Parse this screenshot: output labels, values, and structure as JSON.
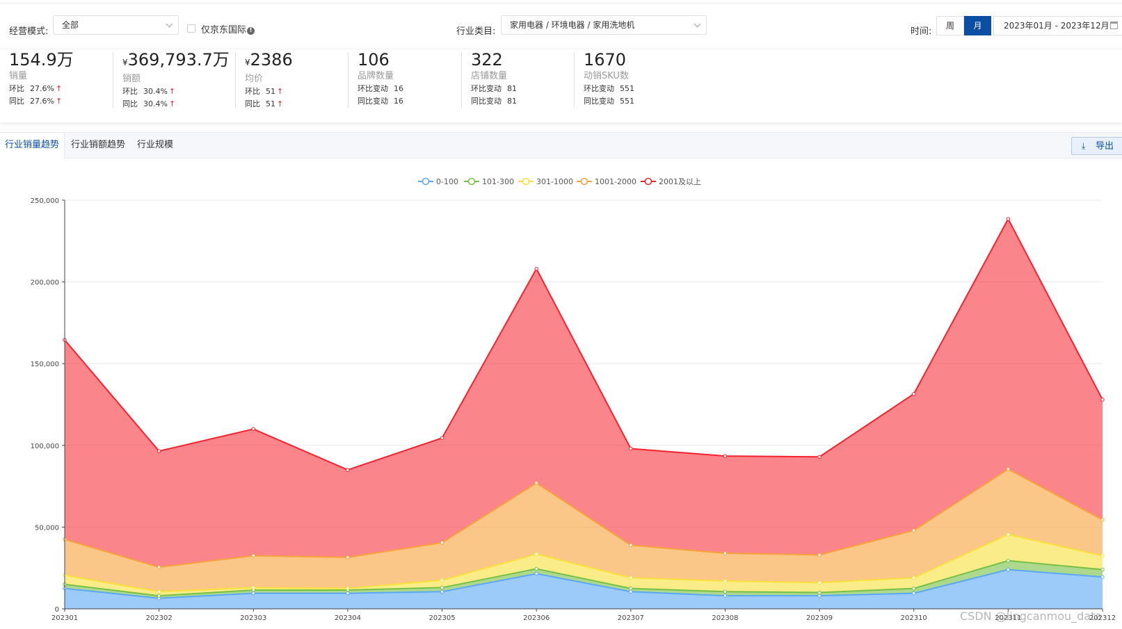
{
  "filters": {
    "mode_label": "经营模式:",
    "mode_value": "全部",
    "jd_intl_label": "仅京东国际",
    "industry_label": "行业类目:",
    "industry_value": "家用电器 / 环境电器 / 家用洗地机",
    "time_label": "时间:",
    "week_label": "周",
    "month_label": "月",
    "date_range": "2023年01月 - 2023年12月"
  },
  "metrics": [
    {
      "value": "154.9万",
      "name": "销量",
      "mom_label": "环比",
      "mom": "27.6%",
      "yoy_label": "同比",
      "yoy": "27.6%",
      "arrow": "↑"
    },
    {
      "yen": "¥",
      "value": "369,793.7万",
      "name": "销额",
      "mom_label": "环比",
      "mom": "30.4%",
      "yoy_label": "同比",
      "yoy": "30.4%",
      "arrow": "↑"
    },
    {
      "yen": "¥",
      "value": "2386",
      "name": "均价",
      "mom_label": "环比",
      "mom": "51",
      "yoy_label": "同比",
      "yoy": "51",
      "arrow": "↑"
    },
    {
      "value": "106",
      "name": "品牌数量",
      "mom_label": "环比变动",
      "mom": "16",
      "yoy_label": "同比变动",
      "yoy": "16"
    },
    {
      "value": "322",
      "name": "店铺数量",
      "mom_label": "环比变动",
      "mom": "81",
      "yoy_label": "同比变动",
      "yoy": "81"
    },
    {
      "value": "1670",
      "name": "动销SKU数",
      "mom_label": "环比变动",
      "mom": "551",
      "yoy_label": "同比变动",
      "yoy": "551"
    }
  ],
  "tabs": [
    {
      "label": "行业销量趋势",
      "active": true
    },
    {
      "label": "行业销额趋势",
      "active": false
    },
    {
      "label": "行业规模",
      "active": false
    }
  ],
  "export_label": "导出",
  "watermark": "CSDN @lingcanmou_data",
  "chart_data": {
    "type": "area",
    "stacked": true,
    "categories": [
      "202301",
      "202302",
      "202303",
      "202304",
      "202305",
      "202306",
      "202307",
      "202308",
      "202309",
      "202310",
      "202311",
      "202312"
    ],
    "ylim": [
      0,
      250000
    ],
    "yticks": [
      "0",
      "50,000",
      "100,000",
      "150,000",
      "200,000",
      "250,000"
    ],
    "legend_position": "top-center",
    "grid": true,
    "series": [
      {
        "name": "0-100",
        "color": "#5aa8f5",
        "values": [
          12500,
          6500,
          9500,
          9500,
          10500,
          21500,
          10500,
          8000,
          8000,
          9500,
          24000,
          19500
        ]
      },
      {
        "name": "101-300",
        "color": "#76c043",
        "values": [
          2500,
          1500,
          2000,
          2000,
          2500,
          3000,
          2000,
          2500,
          2000,
          3000,
          5500,
          4500
        ]
      },
      {
        "name": "301-1000",
        "color": "#f7e13a",
        "values": [
          5500,
          2500,
          1500,
          1000,
          4500,
          9000,
          6500,
          6500,
          6000,
          6500,
          16000,
          8500
        ]
      },
      {
        "name": "1001-2000",
        "color": "#f7a13a",
        "values": [
          22000,
          15000,
          19500,
          19000,
          23000,
          43500,
          20000,
          17000,
          17000,
          29000,
          40000,
          22000
        ]
      },
      {
        "name": "2001及以上",
        "color": "#f5222d",
        "values": [
          122000,
          71000,
          77500,
          53500,
          64000,
          131000,
          59000,
          59500,
          60000,
          83500,
          153000,
          73500
        ]
      }
    ]
  }
}
